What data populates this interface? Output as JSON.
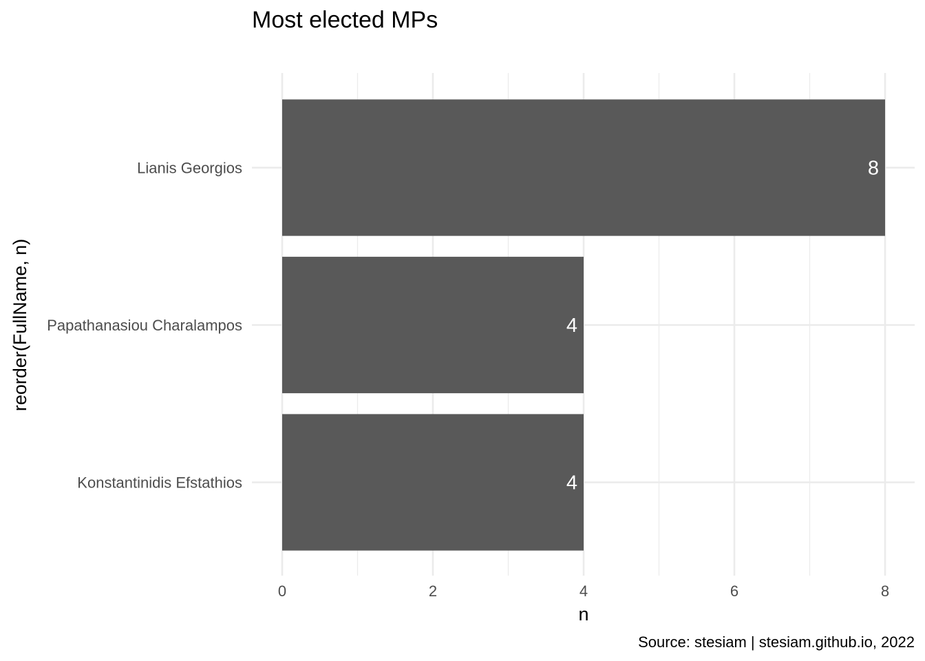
{
  "chart_data": {
    "type": "bar",
    "orientation": "horizontal",
    "title": "Most elected MPs",
    "xlabel": "n",
    "ylabel": "reorder(FullName, n)",
    "caption": "Source: stesiam | stesiam.github.io, 2022",
    "categories": [
      "Lianis Georgios",
      "Papathanasiou Charalampos",
      "Konstantinidis Efstathios"
    ],
    "values": [
      8,
      4,
      4
    ],
    "data_labels": [
      "8",
      "4",
      "4"
    ],
    "xlim": [
      0,
      8.2
    ],
    "x_ticks": [
      0,
      2,
      4,
      6,
      8
    ],
    "x_tick_labels": [
      "0",
      "2",
      "4",
      "6",
      "8"
    ],
    "x_minor_ticks": [
      1,
      3,
      5,
      7
    ],
    "grid": true,
    "legend": "none",
    "colors": {
      "bar": "#595959",
      "grid": "#ebebeb",
      "bar_label": "#ffffff",
      "tick_label": "#4d4d4d",
      "axis_title": "#000000",
      "title": "#000000"
    }
  }
}
